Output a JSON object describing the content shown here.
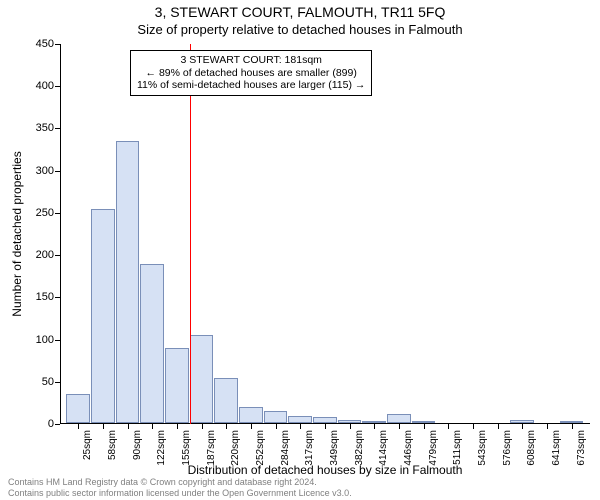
{
  "title_line1": "3, STEWART COURT, FALMOUTH, TR11 5FQ",
  "title_line2": "Size of property relative to detached houses in Falmouth",
  "y_axis_label": "Number of detached properties",
  "x_axis_label": "Distribution of detached houses by size in Falmouth",
  "footer_line1": "Contains HM Land Registry data © Crown copyright and database right 2024.",
  "footer_line2": "Contains public sector information licensed under the Open Government Licence v3.0.",
  "chart": {
    "type": "histogram",
    "background_color": "#ffffff",
    "grid_color": "#e0e0e0",
    "axis_color": "#000000",
    "bar_fill": "#d6e1f4",
    "bar_stroke": "#7a8fb8",
    "bar_stroke_width": 1,
    "reference_line_color": "#ff0000",
    "title_fontsize": 14,
    "subtitle_fontsize": 13,
    "label_fontsize": 12,
    "tick_fontsize": 11,
    "xtick_fontsize": 10,
    "footer_fontsize": 9,
    "footer_color": "#808080",
    "annotation_bg": "#ffffff",
    "annotation_border": "#000000",
    "annotation_fontsize": 10.5,
    "ylim": [
      0,
      450
    ],
    "ytick_step": 50,
    "x_tick_labels": [
      "25sqm",
      "58sqm",
      "90sqm",
      "122sqm",
      "155sqm",
      "187sqm",
      "220sqm",
      "252sqm",
      "284sqm",
      "317sqm",
      "349sqm",
      "382sqm",
      "414sqm",
      "446sqm",
      "479sqm",
      "511sqm",
      "543sqm",
      "576sqm",
      "608sqm",
      "641sqm",
      "673sqm"
    ],
    "values": [
      35,
      255,
      335,
      190,
      90,
      105,
      55,
      20,
      15,
      10,
      8,
      5,
      3,
      12,
      2,
      0,
      0,
      0,
      5,
      0,
      2
    ],
    "reference_bin_index": 5,
    "reference_position": "left",
    "annotation": {
      "line1": "3 STEWART COURT: 181sqm",
      "line2": "← 89% of detached houses are smaller (899)",
      "line3": "11% of semi-detached houses are larger (115) →"
    }
  }
}
